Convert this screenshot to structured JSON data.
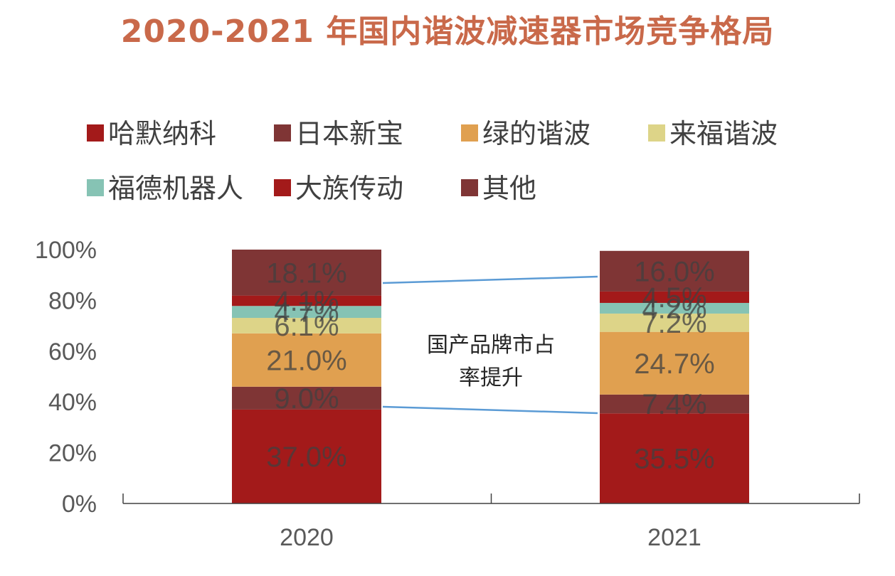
{
  "chart_data": {
    "type": "bar",
    "stacked": true,
    "title": "2020-2021 年国内谐波减速器市场竞争格局",
    "categories": [
      "2020",
      "2021"
    ],
    "ylim": [
      0,
      100
    ],
    "y_ticks": [
      "0%",
      "20%",
      "40%",
      "60%",
      "80%",
      "100%"
    ],
    "legend_position": "top",
    "series": [
      {
        "name": "哈默纳科",
        "color": "#a31a1a",
        "values": [
          37.0,
          35.5
        ],
        "labels": [
          "37.0%",
          "35.5%"
        ]
      },
      {
        "name": "日本新宝",
        "color": "#7f3535",
        "values": [
          9.0,
          7.4
        ],
        "labels": [
          "9.0%",
          "7.4%"
        ]
      },
      {
        "name": "绿的谐波",
        "color": "#e0a050",
        "values": [
          21.0,
          24.7
        ],
        "labels": [
          "21.0%",
          "24.7%"
        ]
      },
      {
        "name": "来福谐波",
        "color": "#ddd488",
        "values": [
          6.1,
          7.2
        ],
        "labels": [
          "6.1%",
          "7.2%"
        ]
      },
      {
        "name": "福德机器人",
        "color": "#86c3b4",
        "values": [
          4.7,
          4.2
        ],
        "labels": [
          "4.7%",
          "4.2%"
        ]
      },
      {
        "name": "大族传动",
        "color": "#a31a1a",
        "values": [
          4.1,
          4.5
        ],
        "labels": [
          "4.1%",
          "4.5%"
        ]
      },
      {
        "name": "其他",
        "color": "#7f3535",
        "values": [
          18.1,
          16.0
        ],
        "labels": [
          "18.1%",
          "16.0%"
        ]
      }
    ],
    "annotation": "国产品牌市占率提升",
    "annotation_lines": [
      "国产品牌市占",
      "率提升"
    ]
  }
}
